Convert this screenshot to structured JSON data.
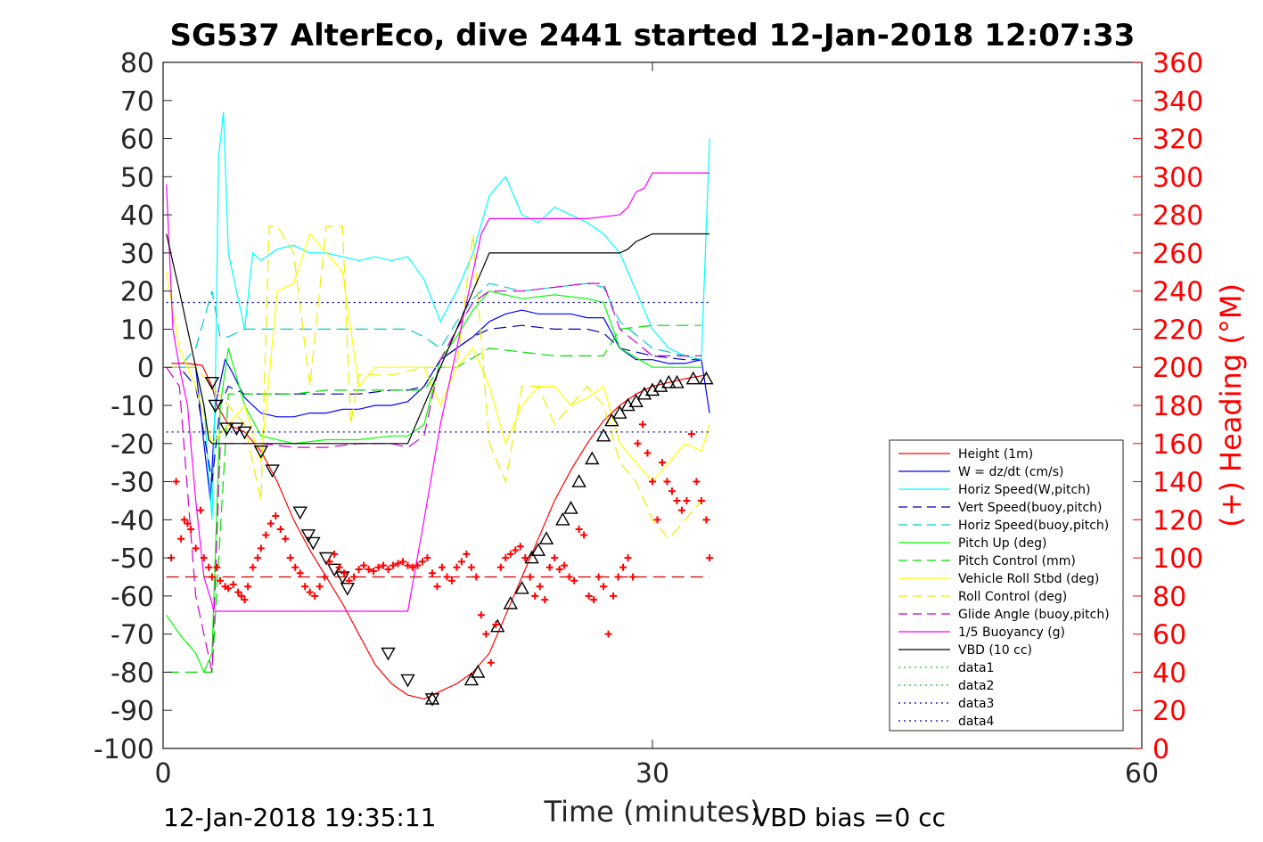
{
  "chart_data": {
    "type": "line",
    "title": "SG537 AlterEco, dive 2441 started 12-Jan-2018 12:07:33",
    "xlabel": "Time (minutes)",
    "ylabel": "",
    "ylabel_right": "(+) Heading (°M)",
    "xlim": [
      0,
      60
    ],
    "ylim": [
      -100,
      80
    ],
    "ylim_right": [
      0,
      360
    ],
    "x_ticks": [
      "0",
      "30",
      "60"
    ],
    "y_ticks": [
      "80",
      "70",
      "60",
      "50",
      "40",
      "30",
      "20",
      "10",
      "0",
      "-10",
      "-20",
      "-30",
      "-40",
      "-50",
      "-60",
      "-70",
      "-80",
      "-90",
      "-100"
    ],
    "y_ticks_right": [
      "360",
      "340",
      "320",
      "300",
      "280",
      "260",
      "240",
      "220",
      "200",
      "180",
      "160",
      "140",
      "120",
      "100",
      "80",
      "60",
      "40",
      "20",
      "0"
    ],
    "legend_position": "lower-right",
    "footer_left": "12-Jan-2018 19:35:11",
    "footer_right": "VBD bias =0 cc",
    "series": [
      {
        "name": "Height (1m)",
        "color": "#ff0000",
        "style": "solid",
        "x": [
          0.5,
          1.5,
          2.4,
          3.0,
          3.3,
          4.0,
          5.0,
          6.0,
          7.0,
          8.0,
          9.0,
          10.0,
          11.0,
          12.0,
          13.0,
          14.0,
          15.0,
          16.0,
          17.0,
          18.0,
          19.0,
          20.0,
          21.0,
          22.0,
          23.0,
          24.0,
          25.0,
          26.0,
          27.0,
          28.0,
          29.0,
          30.0,
          31.0,
          32.0,
          33.3
        ],
        "y": [
          1,
          1,
          0.5,
          -5,
          -10,
          -15,
          -17,
          -22,
          -30,
          -40,
          -48,
          -55,
          -62,
          -70,
          -78,
          -83,
          -86,
          -87,
          -85,
          -83,
          -80,
          -75,
          -65,
          -55,
          -45,
          -35,
          -27,
          -20,
          -14,
          -10,
          -7,
          -5,
          -4,
          -3,
          -2
        ]
      },
      {
        "name": "W = dz/dt (cm/s)",
        "color": "#0000ff",
        "style": "solid",
        "x": [
          0.2,
          1.0,
          2.0,
          2.5,
          2.9,
          3.2,
          3.8,
          4.2,
          5.0,
          6.0,
          7.0,
          8.0,
          9.0,
          10.0,
          11.0,
          12.0,
          13.0,
          14.0,
          15.0,
          16.0,
          17.0,
          18.0,
          19.0,
          20.0,
          21.0,
          22.0,
          23.0,
          24.0,
          25.0,
          26.0,
          27.0,
          28.0,
          29.0,
          30.0,
          31.0,
          32.0,
          33.0,
          33.5
        ],
        "y": [
          0,
          0,
          0,
          -20,
          -35,
          -10,
          2,
          -1,
          -8,
          -12,
          -13,
          -13,
          -12,
          -12,
          -11,
          -11,
          -10,
          -10,
          -9,
          -5,
          2,
          5,
          8,
          12,
          14,
          15,
          14,
          14,
          14,
          13,
          13,
          5,
          2,
          2,
          1,
          1,
          2,
          -12
        ]
      },
      {
        "name": "Horiz Speed(W,pitch)",
        "color": "#00ffff",
        "style": "solid",
        "x": [
          0.2,
          1.0,
          2.0,
          2.5,
          3.0,
          3.2,
          3.4,
          3.7,
          4.0,
          4.5,
          5.0,
          5.5,
          6.0,
          7.0,
          8.0,
          9.0,
          10.0,
          11.0,
          12.0,
          13.0,
          14.0,
          15.0,
          16.0,
          17.0,
          18.0,
          19.0,
          20.0,
          21.0,
          22.0,
          23.0,
          24.0,
          25.0,
          26.0,
          27.0,
          28.0,
          29.0,
          30.0,
          31.0,
          32.0,
          33.0,
          33.5
        ],
        "y": [
          0,
          0,
          0,
          -10,
          -40,
          -5,
          55,
          67,
          30,
          20,
          10,
          30,
          28,
          31,
          32,
          30,
          30,
          29,
          28,
          29,
          28,
          29,
          23,
          12,
          20,
          30,
          45,
          50,
          40,
          38,
          42,
          40,
          38,
          35,
          30,
          20,
          10,
          5,
          3,
          2,
          60
        ]
      },
      {
        "name": "Vert Speed(buoy,pitch)",
        "color": "#0000aa",
        "style": "dashed",
        "x": [
          0.2,
          1.0,
          2.0,
          3.0,
          3.5,
          4.0,
          5.0,
          6.0,
          8.0,
          10.0,
          12.0,
          14.0,
          15.0,
          16.0,
          17.0,
          18.0,
          19.0,
          20.0,
          22.0,
          24.0,
          26.0,
          27.0,
          28.0,
          30.0,
          32.0,
          33.0
        ],
        "y": [
          0,
          0,
          -5,
          -30,
          -10,
          -5,
          -7,
          -7,
          -7,
          -7,
          -7,
          -6,
          -6,
          -5,
          2,
          5,
          8,
          10,
          11,
          10,
          10,
          9,
          5,
          3,
          2,
          2
        ]
      },
      {
        "name": "Horiz Speed(buoy,pitch)",
        "color": "#00cccc",
        "style": "dashed",
        "x": [
          0.2,
          1.0,
          2.0,
          3.0,
          3.5,
          4.0,
          5.0,
          6.0,
          8.0,
          10.0,
          12.0,
          14.0,
          15.0,
          16.0,
          17.0,
          18.0,
          19.0,
          20.0,
          22.0,
          24.0,
          26.0,
          27.0,
          28.0,
          30.0,
          32.0,
          33.0
        ],
        "y": [
          0,
          0,
          5,
          20,
          8,
          8,
          10,
          10,
          10,
          10,
          10,
          10,
          10,
          8,
          5,
          12,
          18,
          22,
          20,
          21,
          22,
          21,
          12,
          5,
          3,
          2
        ]
      },
      {
        "name": "Pitch Up (deg)",
        "color": "#00ff00",
        "style": "solid",
        "x": [
          0.2,
          1.0,
          2.0,
          2.5,
          3.0,
          3.5,
          4.0,
          5.0,
          6.0,
          8.0,
          10.0,
          12.0,
          14.0,
          15.0,
          16.0,
          17.0,
          18.0,
          19.0,
          20.0,
          22.0,
          24.0,
          26.0,
          27.0,
          28.0,
          30.0,
          32.0,
          33.0
        ],
        "y": [
          -65,
          -70,
          -75,
          -80,
          -75,
          -10,
          5,
          -10,
          -18,
          -20,
          -19,
          -19,
          -18,
          -18,
          -15,
          2,
          8,
          15,
          20,
          18,
          19,
          18,
          17,
          5,
          0,
          0,
          0
        ]
      },
      {
        "name": "Pitch Control (mm)",
        "color": "#00dd00",
        "style": "dashed",
        "x": [
          0.2,
          2.0,
          3.0,
          4.0,
          6.0,
          8.0,
          10.0,
          12.0,
          14.0,
          16.0,
          17.0,
          18.0,
          20.0,
          22.0,
          24.0,
          26.0,
          27.0,
          28.0,
          30.0,
          32.0,
          33.0
        ],
        "y": [
          -80,
          -80,
          -80,
          -7,
          -7,
          -7,
          -6,
          -6,
          -6,
          -6,
          0,
          0,
          5,
          4,
          3,
          3,
          3,
          10,
          11,
          11,
          11
        ]
      },
      {
        "name": "Vehicle Roll Stbd (deg)",
        "color": "#ffff00",
        "style": "solid",
        "x": [
          0.2,
          1.0,
          2.0,
          3.0,
          4.0,
          5.0,
          6.0,
          7.0,
          8.0,
          9.0,
          10.0,
          11.0,
          12.0,
          13.0,
          14.0,
          15.0,
          16.0,
          17.0,
          18.0,
          19.0,
          20.0,
          21.0,
          22.0,
          23.0,
          24.0,
          25.0,
          26.0,
          27.0,
          28.0,
          29.0,
          30.0,
          31.0,
          32.0,
          33.0,
          33.5
        ],
        "y": [
          25,
          5,
          -5,
          -20,
          -15,
          -10,
          -25,
          20,
          22,
          35,
          30,
          25,
          -5,
          0,
          0,
          0,
          0,
          -10,
          0,
          5,
          -5,
          -20,
          -10,
          -5,
          -5,
          -10,
          -8,
          -5,
          -20,
          -25,
          -30,
          -25,
          -20,
          -22,
          -15
        ]
      },
      {
        "name": "Roll Control (deg)",
        "color": "#eeee00",
        "style": "dashed",
        "x": [
          0.2,
          1.0,
          2.0,
          3.0,
          4.0,
          5.0,
          6.0,
          6.5,
          7.0,
          8.0,
          9.0,
          10.0,
          11.0,
          11.5,
          12.0,
          14.0,
          16.0,
          18.0,
          19.0,
          20.0,
          21.0,
          22.0,
          23.0,
          24.0,
          25.0,
          26.0,
          27.0,
          28.0,
          29.0,
          30.0,
          31.0,
          32.0,
          33.0
        ],
        "y": [
          0,
          0,
          0,
          -5,
          -10,
          -15,
          -35,
          37,
          37,
          30,
          -5,
          37,
          37,
          -15,
          -2,
          -2,
          0,
          0,
          35,
          -20,
          -30,
          -5,
          -5,
          -15,
          -10,
          -5,
          -10,
          -25,
          -30,
          -40,
          -45,
          -40,
          -35
        ]
      },
      {
        "name": "Glide Angle (buoy,pitch)",
        "color": "#cc00cc",
        "style": "dashed",
        "x": [
          0.2,
          1.0,
          2.0,
          3.0,
          3.5,
          4.0,
          6.0,
          8.0,
          10.0,
          12.0,
          14.0,
          15.0,
          16.0,
          17.0,
          18.0,
          19.0,
          20.0,
          22.0,
          24.0,
          26.0,
          27.0,
          28.0,
          30.0,
          32.0,
          33.0
        ],
        "y": [
          0,
          -5,
          -60,
          -80,
          -20,
          -20,
          -20,
          -21,
          -21,
          -20,
          -20,
          -21,
          -18,
          2,
          10,
          17,
          20,
          20,
          21,
          22,
          22,
          10,
          3,
          3,
          3
        ]
      },
      {
        "name": "1/5 Buoyancy (g)",
        "color": "#ff00ff",
        "style": "solid",
        "x": [
          0.2,
          0.6,
          1.0,
          1.5,
          2.0,
          2.5,
          3.0,
          3.1,
          4.0,
          6.0,
          8.0,
          10.0,
          12.0,
          14.0,
          15.0,
          16.0,
          17.0,
          18.0,
          19.0,
          19.5,
          20.0,
          22.0,
          24.0,
          26.0,
          28.0,
          28.5,
          29.0,
          29.5,
          30.0,
          32.0,
          33.5
        ],
        "y": [
          48,
          10,
          0,
          -10,
          -35,
          -55,
          -62,
          -64,
          -64,
          -64,
          -64,
          -64,
          -64,
          -64,
          -64,
          -40,
          -15,
          5,
          25,
          35,
          39,
          39,
          39,
          39,
          40,
          42,
          46,
          47,
          51,
          51,
          51
        ]
      },
      {
        "name": "VBD (10 cc)",
        "color": "#000000",
        "style": "solid",
        "x": [
          0.2,
          1.0,
          2.0,
          2.5,
          2.8,
          3.0,
          6.0,
          8.0,
          10.0,
          12.0,
          14.0,
          15.0,
          15.5,
          16.0,
          17.0,
          18.0,
          19.0,
          19.5,
          20.0,
          22.0,
          24.0,
          26.0,
          28.0,
          28.5,
          29.0,
          29.5,
          30.0,
          32.0,
          33.5
        ],
        "y": [
          35,
          20,
          0,
          -10,
          -19,
          -20,
          -20,
          -20,
          -20,
          -20,
          -20,
          -20,
          -15,
          -10,
          0,
          10,
          20,
          25,
          30,
          30,
          30,
          30,
          30,
          31,
          33,
          34,
          35,
          35,
          35
        ]
      },
      {
        "name": "data1",
        "color": "#00dd00",
        "style": "dotted",
        "x": [],
        "y": []
      },
      {
        "name": "data2",
        "color": "#00cc00",
        "style": "dotted",
        "x": [],
        "y": []
      },
      {
        "name": "data3",
        "color": "#0000aa",
        "style": "dotted",
        "x": [
          0.2,
          33.5
        ],
        "y": [
          17,
          17
        ]
      },
      {
        "name": "data4",
        "color": "#0000aa",
        "style": "dotted",
        "x": [
          0.2,
          33.5
        ],
        "y": [
          -17,
          -17
        ]
      },
      {
        "name": "",
        "color": "#cc0000",
        "style": "dashed",
        "x": [
          0.2,
          33.5
        ],
        "y": [
          -55,
          -55
        ]
      }
    ],
    "down_markers": {
      "x": [
        3.0,
        3.2,
        3.9,
        4.5,
        5.0,
        6.0,
        6.7,
        8.4,
        8.9,
        9.2,
        10.0,
        10.5,
        11.0,
        11.3,
        13.8,
        15.0,
        16.5
      ],
      "y": [
        -4,
        -10,
        -16,
        -16,
        -17,
        -22,
        -27,
        -38,
        -44,
        -46,
        -50,
        -53,
        -55,
        -58,
        -75,
        -82,
        -87
      ]
    },
    "up_markers": {
      "x": [
        16.5,
        18.9,
        19.3,
        20.5,
        21.3,
        22.0,
        22.6,
        23.0,
        23.5,
        24.5,
        25.0,
        25.5,
        26.3,
        27.0,
        27.5,
        28.0,
        28.5,
        29.0,
        29.5,
        30.0,
        30.5,
        31.0,
        31.5,
        32.5,
        33.3
      ],
      "y": [
        -87,
        -82,
        -80,
        -68,
        -62,
        -58,
        -50,
        -48,
        -45,
        -40,
        -37,
        -30,
        -24,
        -18,
        -14,
        -12,
        -10,
        -9,
        -7,
        -6,
        -5,
        -4,
        -4,
        -3,
        -3
      ]
    },
    "heading": {
      "name": "Heading",
      "color": "#ff0000",
      "marker": "+",
      "x": [
        0.5,
        0.8,
        1.1,
        1.3,
        1.5,
        1.7,
        2.0,
        2.3,
        2.5,
        2.8,
        3.0,
        3.3,
        3.5,
        3.8,
        4.0,
        4.3,
        4.6,
        4.8,
        5.0,
        5.2,
        5.5,
        5.8,
        6.0,
        6.3,
        6.6,
        6.9,
        7.2,
        7.5,
        7.8,
        8.1,
        8.4,
        8.7,
        9.0,
        9.3,
        9.6,
        9.9,
        10.2,
        10.5,
        10.8,
        11.1,
        11.4,
        11.7,
        12.0,
        12.3,
        12.6,
        12.9,
        13.2,
        13.5,
        13.8,
        14.1,
        14.4,
        14.7,
        15.0,
        15.3,
        15.6,
        15.9,
        16.2,
        16.5,
        16.8,
        17.1,
        17.4,
        17.7,
        18.0,
        18.3,
        18.6,
        18.9,
        19.2,
        19.5,
        19.8,
        20.1,
        20.4,
        20.7,
        21.0,
        21.3,
        21.6,
        21.9,
        22.2,
        22.5,
        22.8,
        23.1,
        23.4,
        23.7,
        24.0,
        24.3,
        24.6,
        24.9,
        25.2,
        25.5,
        25.8,
        26.1,
        26.4,
        26.7,
        27.0,
        27.3,
        27.6,
        27.9,
        28.2,
        28.5,
        28.8,
        29.1,
        29.4,
        29.7,
        30.0,
        30.3,
        30.6,
        30.9,
        31.2,
        31.5,
        31.8,
        32.1,
        32.4,
        32.7,
        33.0,
        33.3,
        33.5
      ],
      "y": [
        100,
        140,
        110,
        120,
        118,
        115,
        105,
        125,
        100,
        95,
        90,
        95,
        88,
        85,
        84,
        86,
        82,
        80,
        78,
        85,
        95,
        100,
        105,
        112,
        118,
        122,
        115,
        110,
        100,
        95,
        92,
        85,
        82,
        80,
        85,
        90,
        98,
        102,
        95,
        92,
        88,
        90,
        94,
        96,
        94,
        93,
        95,
        96,
        94,
        96,
        97,
        98,
        96,
        95,
        96,
        98,
        100,
        92,
        85,
        95,
        90,
        88,
        95,
        98,
        102,
        95,
        90,
        70,
        60,
        45,
        65,
        95,
        100,
        102,
        104,
        106,
        100,
        90,
        80,
        85,
        78,
        95,
        100,
        94,
        96,
        90,
        88,
        115,
        112,
        80,
        78,
        90,
        85,
        60,
        80,
        90,
        95,
        100,
        90,
        160,
        170,
        155,
        140,
        120,
        150,
        140,
        135,
        130,
        125,
        130,
        165,
        140,
        130,
        120,
        100
      ]
    }
  }
}
